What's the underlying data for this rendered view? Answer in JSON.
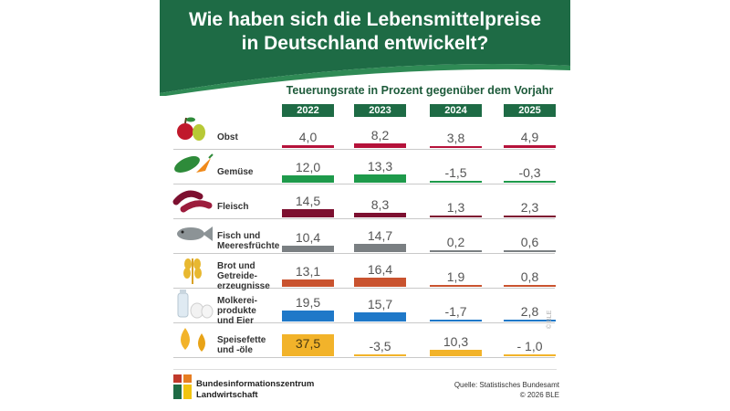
{
  "header": {
    "title_line1": "Wie haben sich die Lebensmittelpreise",
    "title_line2": "in Deutschland entwickelt?",
    "background_color": "#1e6b45",
    "swoosh_color": "#2f8a55"
  },
  "chart_data": {
    "type": "table",
    "title": "Teuerungsrate in Prozent gegenüber dem Vorjahr",
    "years": [
      "2022",
      "2023",
      "2024",
      "2025"
    ],
    "unit": "Prozent",
    "series": [
      {
        "name": "Obst",
        "label_lines": [
          "Obst"
        ],
        "icon": "fruit-icon",
        "color": "#b5123a",
        "display": [
          "4,0",
          "8,2",
          "3,8",
          "4,9"
        ],
        "values": [
          4.0,
          8.2,
          3.8,
          4.9
        ]
      },
      {
        "name": "Gemüse",
        "label_lines": [
          "Gemüse"
        ],
        "icon": "vegetable-icon",
        "color": "#1e9a4b",
        "display": [
          "12,0",
          "13,3",
          "-1,5",
          "-0,3"
        ],
        "values": [
          12.0,
          13.3,
          -1.5,
          -0.3
        ]
      },
      {
        "name": "Fleisch",
        "label_lines": [
          "Fleisch"
        ],
        "icon": "sausage-icon",
        "color": "#7d1030",
        "display": [
          "14,5",
          "8,3",
          "1,3",
          "2,3"
        ],
        "values": [
          14.5,
          8.3,
          1.3,
          2.3
        ]
      },
      {
        "name": "Fisch und Meeresfrüchte",
        "label_lines": [
          "Fisch und",
          "Meeresfrüchte"
        ],
        "icon": "fish-icon",
        "color": "#7a7f82",
        "display": [
          "10,4",
          "14,7",
          "0,2",
          "0,6"
        ],
        "values": [
          10.4,
          14.7,
          0.2,
          0.6
        ]
      },
      {
        "name": "Brot und Getreideerzeugnisse",
        "label_lines": [
          "Brot und",
          "Getreide-",
          "erzeugnisse"
        ],
        "icon": "wheat-icon",
        "color": "#c9532f",
        "display": [
          "13,1",
          "16,4",
          "1,9",
          "0,8"
        ],
        "values": [
          13.1,
          16.4,
          1.9,
          0.8
        ]
      },
      {
        "name": "Molkereiprodukte und Eier",
        "label_lines": [
          "Molkerei-",
          "produkte",
          "und Eier"
        ],
        "icon": "dairy-icon",
        "color": "#1f78c8",
        "display": [
          "19,5",
          "15,7",
          "-1,7",
          "2,8"
        ],
        "values": [
          19.5,
          15.7,
          -1.7,
          2.8
        ]
      },
      {
        "name": "Speisefette und -öle",
        "label_lines": [
          "Speisefette",
          "und -öle"
        ],
        "icon": "oil-drops-icon",
        "color": "#f2b32a",
        "display": [
          "37,5",
          "-3,5",
          "10,3",
          "- 1,0"
        ],
        "values": [
          37.5,
          -3.5,
          10.3,
          -1.0
        ]
      }
    ]
  },
  "footer": {
    "org_line1": "Bundesinformationszentrum",
    "org_line2": "Landwirtschaft",
    "source": "Quelle: Statistisches Bundesamt",
    "copyright": "© 2026 BLE",
    "watermark": "© BLE"
  }
}
